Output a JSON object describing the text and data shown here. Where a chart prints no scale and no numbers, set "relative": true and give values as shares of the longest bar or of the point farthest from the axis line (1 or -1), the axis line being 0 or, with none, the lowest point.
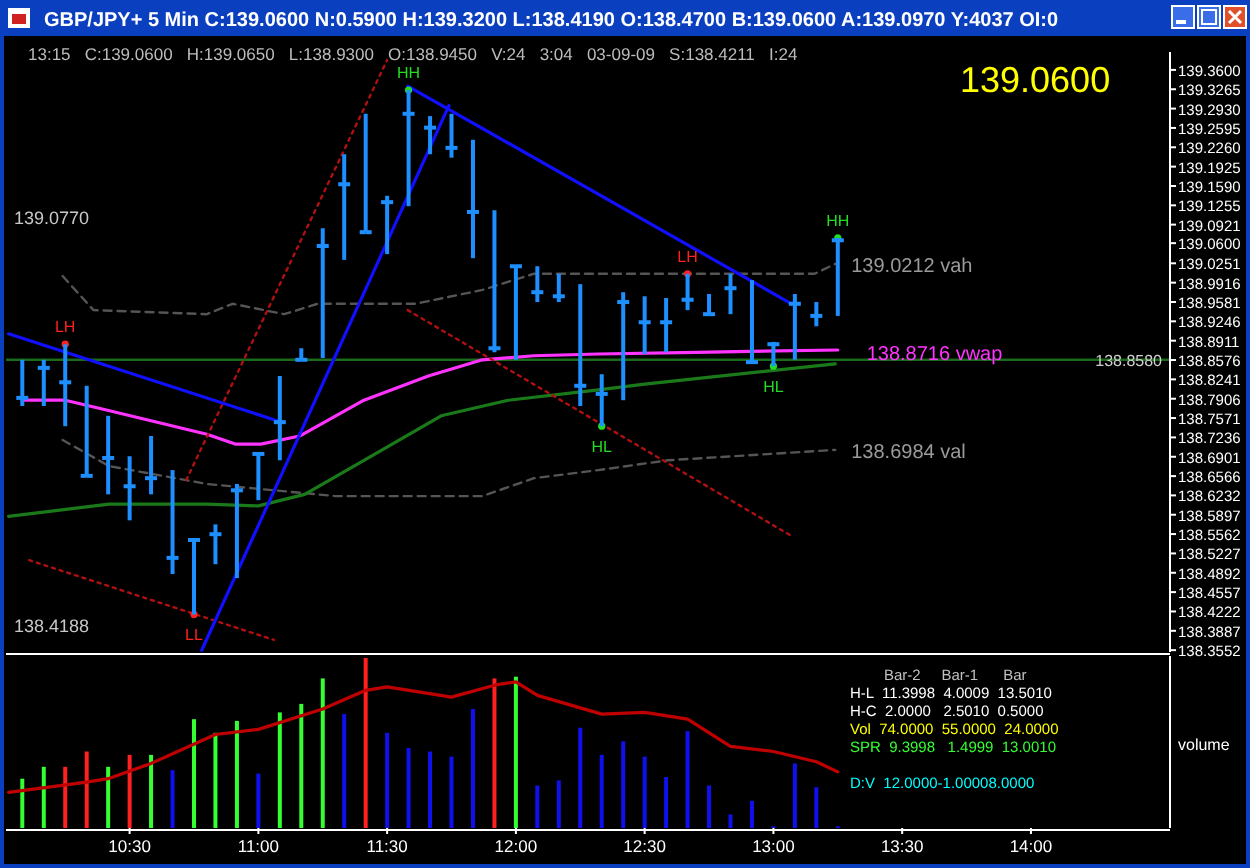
{
  "chart_data": [
    {
      "type": "candlestick",
      "title": "GBP/JPY+ 5 Min C:139.0600 N:0.5900 H:139.3200 L:138.4190 O:138.4700 B:139.0600 A:139.0970 Y:4037 OI:0",
      "subtitle": "13:15   C:139.0600   H:139.0650   L:138.9300   O:138.9450   V:24   3:04   03-09-09   S:138.4211   I:24",
      "color": "#1e8fff",
      "x": [
        10.0833,
        10.1667,
        10.25,
        10.3333,
        10.4167,
        10.5,
        10.5833,
        10.6667,
        10.75,
        10.8333,
        10.9167,
        11,
        11.0833,
        11.1667,
        11.25,
        11.3333,
        11.4167,
        11.5,
        11.5833,
        11.6667,
        11.75,
        11.8333,
        11.9167,
        12,
        12.0833,
        12.1667,
        12.25,
        12.3333,
        12.4167,
        12.5,
        12.5833,
        12.6667,
        12.75,
        12.8333,
        12.9167,
        13,
        13.0833,
        13.1667,
        13.25
      ],
      "ohlc": [
        [
          138.792,
          138.858,
          138.778,
          138.792
        ],
        [
          138.844,
          138.858,
          138.778,
          138.844
        ],
        [
          138.819,
          138.885,
          138.743,
          138.819
        ],
        [
          138.657,
          138.813,
          138.657,
          138.657
        ],
        [
          138.688,
          138.761,
          138.625,
          138.688
        ],
        [
          138.639,
          138.691,
          138.58,
          138.639
        ],
        [
          138.653,
          138.726,
          138.625,
          138.653
        ],
        [
          138.515,
          138.667,
          138.487,
          138.515
        ],
        [
          138.546,
          138.549,
          138.417,
          138.546
        ],
        [
          138.556,
          138.573,
          138.504,
          138.556
        ],
        [
          138.632,
          138.643,
          138.48,
          138.632
        ],
        [
          138.695,
          138.698,
          138.615,
          138.695
        ],
        [
          138.75,
          138.83,
          138.684,
          138.75
        ],
        [
          138.858,
          138.878,
          138.858,
          138.858
        ],
        [
          139.055,
          139.086,
          138.861,
          139.055
        ],
        [
          139.162,
          139.214,
          139.031,
          139.162
        ],
        [
          139.079,
          139.284,
          139.079,
          139.079
        ],
        [
          139.131,
          139.142,
          139.041,
          139.131
        ],
        [
          139.284,
          139.325,
          139.124,
          139.284
        ],
        [
          139.26,
          139.28,
          139.214,
          139.26
        ],
        [
          139.225,
          139.284,
          139.208,
          139.225
        ],
        [
          139.114,
          139.239,
          139.034,
          139.114
        ],
        [
          138.878,
          139.117,
          138.871,
          138.878
        ],
        [
          139.02,
          139.02,
          138.858,
          139.02
        ],
        [
          138.975,
          139.02,
          138.958,
          138.975
        ],
        [
          138.968,
          139.007,
          138.958,
          138.968
        ],
        [
          138.813,
          138.989,
          138.778,
          138.813
        ],
        [
          138.799,
          138.833,
          138.743,
          138.799
        ],
        [
          138.958,
          138.975,
          138.788,
          138.958
        ],
        [
          138.923,
          138.968,
          138.868,
          138.923
        ],
        [
          138.923,
          138.965,
          138.871,
          138.923
        ],
        [
          138.962,
          139.007,
          138.944,
          138.962
        ],
        [
          138.937,
          138.972,
          138.937,
          138.937
        ],
        [
          138.982,
          139.007,
          138.937,
          138.982
        ],
        [
          138.854,
          138.996,
          138.851,
          138.854
        ],
        [
          138.885,
          138.889,
          138.847,
          138.885
        ],
        [
          138.955,
          138.972,
          138.858,
          138.955
        ],
        [
          138.934,
          138.958,
          138.916,
          138.934
        ],
        [
          139.065,
          139.069,
          138.934,
          139.065
        ]
      ],
      "series": [
        {
          "type": "line",
          "color": "#555555",
          "line_style": "dashed",
          "x": [
            10.24,
            10.36,
            10.8,
            10.9,
            11.1,
            11.23,
            11.61,
            11.87,
            12.07,
            13.16,
            13.24
          ],
          "values": [
            139.003,
            138.944,
            138.937,
            138.955,
            138.937,
            138.955,
            138.955,
            138.979,
            139.007,
            139.007,
            139.024
          ]
        },
        {
          "type": "line",
          "color": "#555555",
          "line_style": "dashed",
          "x": [
            10.24,
            10.42,
            10.8,
            11.3,
            11.87,
            12.07,
            12.32,
            12.59,
            13.24
          ],
          "values": [
            138.719,
            138.674,
            138.643,
            138.622,
            138.622,
            138.653,
            138.667,
            138.684,
            138.702
          ]
        },
        {
          "type": "line",
          "color": "#1a7a1a",
          "line_style": "solid",
          "x": [
            10.03,
            10.42,
            10.8,
            11,
            11.18,
            11.41,
            11.71,
            11.97,
            12.32,
            12.5,
            13.24
          ],
          "values": [
            138.587,
            138.608,
            138.608,
            138.605,
            138.625,
            138.684,
            138.761,
            138.788,
            138.806,
            138.816,
            138.851
          ]
        },
        {
          "type": "line",
          "color": "#ff33ff",
          "line_style": "solid",
          "x": [
            10.0833,
            10.25,
            10.41,
            10.8,
            10.91,
            11.01,
            11.16,
            11.41,
            11.66,
            11.87,
            12.07,
            12.32,
            12.7,
            13.25
          ],
          "values": [
            138.788,
            138.788,
            138.771,
            138.729,
            138.712,
            138.712,
            138.726,
            138.788,
            138.83,
            138.858,
            138.865,
            138.868,
            138.871,
            138.875
          ]
        },
        {
          "type": "line",
          "color": "#b01010",
          "line_style": "dotted",
          "x": [
            10.72,
            11.5
          ],
          "values": [
            138.65,
            139.377
          ]
        },
        {
          "type": "line",
          "color": "#b01010",
          "line_style": "dotted",
          "x": [
            10.11,
            11.06
          ],
          "values": [
            138.511,
            138.373
          ]
        },
        {
          "type": "line",
          "color": "#b01010",
          "line_style": "dotted",
          "x": [
            11.58,
            13.07
          ],
          "values": [
            138.944,
            138.553
          ]
        },
        {
          "type": "line",
          "color": "#1010ff",
          "line_style": "solid",
          "x": [
            10.03,
            11.09
          ],
          "values": [
            138.903,
            138.75
          ]
        },
        {
          "type": "line",
          "color": "#1010ff",
          "line_style": "solid",
          "x": [
            10.78,
            11.74
          ],
          "values": [
            138.355,
            139.298
          ]
        },
        {
          "type": "line",
          "color": "#1010ff",
          "line_style": "solid",
          "x": [
            11.58,
            13.07
          ],
          "values": [
            139.332,
            138.955
          ]
        },
        {
          "type": "scatter",
          "marker": "circle",
          "x": [
            10.25,
            10.75,
            11.5833,
            12.3333,
            12.6667,
            13,
            13.25
          ],
          "values": [
            138.885,
            138.417,
            139.325,
            138.743,
            139.007,
            138.847,
            139.069
          ],
          "colors": [
            "#ff2020",
            "#ff2020",
            "#22dd22",
            "#22dd22",
            "#ff2020",
            "#22dd22",
            "#22dd22"
          ]
        }
      ],
      "ref_lines": [
        {
          "axis": "y",
          "value": 138.858,
          "label": "138.8580",
          "color": "#1a6b1a"
        }
      ],
      "annotations": [
        "139.0600",
        {
          "text": "LH",
          "x": 10.25,
          "y": 138.885
        },
        {
          "text": "LL",
          "x": 10.75,
          "y": 138.417
        },
        {
          "text": "HH",
          "x": 11.5833,
          "y": 139.325
        },
        {
          "text": "HL",
          "x": 12.3333,
          "y": 138.743
        },
        {
          "text": "LH",
          "x": 12.6667,
          "y": 139.007
        },
        {
          "text": "HL",
          "x": 13,
          "y": 138.847
        },
        {
          "text": "HH",
          "x": 13.25,
          "y": 139.069
        },
        "139.0212 vah",
        {
          "text": "138.8716 vwap",
          "x": 13.3,
          "y": 138.872
        },
        "138.6984 val",
        "139.0770",
        "138.4188"
      ],
      "xlim": [
        10.02,
        14.54
      ],
      "ylim": [
        138.352,
        139.391
      ],
      "tick_labels": "y",
      "yticks": [
        {
          "value": 139.36,
          "label": "139.3600"
        },
        {
          "value": 139.3265,
          "label": "139.3265"
        },
        {
          "value": 139.293,
          "label": "139.2930"
        },
        {
          "value": 139.2595,
          "label": "139.2595"
        },
        {
          "value": 139.226,
          "label": "139.2260"
        },
        {
          "value": 139.1925,
          "label": "139.1925"
        },
        {
          "value": 139.159,
          "label": "139.1590"
        },
        {
          "value": 139.1255,
          "label": "139.1255"
        },
        {
          "value": 139.0921,
          "label": "139.0921"
        },
        {
          "value": 139.06,
          "label": "139.0600"
        },
        {
          "value": 139.0251,
          "label": "139.0251"
        },
        {
          "value": 138.9916,
          "label": "138.9916"
        },
        {
          "value": 138.9581,
          "label": "138.9581"
        },
        {
          "value": 138.9246,
          "label": "138.9246"
        },
        {
          "value": 138.8911,
          "label": "138.8911"
        },
        {
          "value": 138.8576,
          "label": "138.8576"
        },
        {
          "value": 138.8241,
          "label": "138.8241"
        },
        {
          "value": 138.7906,
          "label": "138.7906"
        },
        {
          "value": 138.7571,
          "label": "138.7571"
        },
        {
          "value": 138.7236,
          "label": "138.7236"
        },
        {
          "value": 138.6901,
          "label": "138.6901"
        },
        {
          "value": 138.6566,
          "label": "138.6566"
        },
        {
          "value": 138.6232,
          "label": "138.6232"
        },
        {
          "value": 138.5897,
          "label": "138.5897"
        },
        {
          "value": 138.5562,
          "label": "138.5562"
        },
        {
          "value": 138.5227,
          "label": "138.5227"
        },
        {
          "value": 138.4892,
          "label": "138.4892"
        },
        {
          "value": 138.4557,
          "label": "138.4557"
        },
        {
          "value": 138.4222,
          "label": "138.4222"
        },
        {
          "value": 138.3887,
          "label": "138.3887"
        },
        {
          "value": 138.3552,
          "label": "138.3552"
        }
      ]
    },
    {
      "type": "bar",
      "relative": true,
      "ylabel": "volume",
      "tick_labels": "x",
      "xlim": [
        10.02,
        14.54
      ],
      "xticks": [
        {
          "value": 10.5,
          "label": "10:30"
        },
        {
          "value": 11,
          "label": "11:00"
        },
        {
          "value": 11.5,
          "label": "11:30"
        },
        {
          "value": 12,
          "label": "12:00"
        },
        {
          "value": 12.5,
          "label": "12:30"
        },
        {
          "value": 13,
          "label": "13:00"
        },
        {
          "value": 13.5,
          "label": "13:30"
        },
        {
          "value": 14,
          "label": "14:00"
        }
      ],
      "series": [
        {
          "x": [
            10.0833,
            10.1667,
            10.25,
            10.3333,
            10.4167,
            10.5,
            10.5833,
            10.6667,
            10.75,
            10.8333,
            10.9167,
            11,
            11.0833,
            11.1667,
            11.25,
            11.3333,
            11.4167,
            11.5,
            11.5833,
            11.6667,
            11.75,
            11.8333,
            11.9167,
            12,
            12.0833,
            12.1667,
            12.25,
            12.3333,
            12.4167,
            12.5,
            12.5833,
            12.6667,
            12.75,
            12.8333,
            12.9167,
            13,
            13.0833,
            13.1667,
            13.25
          ],
          "values": [
            0.29,
            0.36,
            0.36,
            0.45,
            0.36,
            0.43,
            0.43,
            0.34,
            0.64,
            0.56,
            0.63,
            0.32,
            0.68,
            0.73,
            0.88,
            0.67,
            1,
            0.56,
            0.47,
            0.45,
            0.42,
            0.7,
            0.88,
            0.89,
            0.25,
            0.28,
            0.59,
            0.43,
            0.51,
            0.42,
            0.3,
            0.57,
            0.25,
            0.08,
            0.16,
            0.01,
            0.38,
            0.24,
            0.01
          ],
          "colors": [
            "#33ff33",
            "#33ff33",
            "#ff2020",
            "#ff2020",
            "#33ff33",
            "#ff2020",
            "#33ff33",
            "#1010ee",
            "#33ff33",
            "#33ff33",
            "#33ff33",
            "#1010ee",
            "#33ff33",
            "#33ff33",
            "#33ff33",
            "#1010ee",
            "#ff2020",
            "#1010ee",
            "#1010ee",
            "#1010ee",
            "#1010ee",
            "#1010ee",
            "#ff2020",
            "#33ff33",
            "#1010ee",
            "#1010ee",
            "#1010ee",
            "#1010ee",
            "#1010ee",
            "#1010ee",
            "#1010ee",
            "#1010ee",
            "#1010ee",
            "#1010ee",
            "#1010ee",
            "#1010ee",
            "#1010ee",
            "#1010ee",
            "#1010ee"
          ]
        },
        {
          "type": "line",
          "color": "#c00000",
          "x": [
            10.03,
            10.3333,
            10.4167,
            10.5833,
            10.8333,
            11,
            11.25,
            11.4167,
            11.5,
            11.75,
            11.9167,
            12,
            12.0833,
            12.3333,
            12.5,
            12.6667,
            12.8333,
            13,
            13.1667,
            13.25
          ],
          "values": [
            0.21,
            0.27,
            0.29,
            0.38,
            0.55,
            0.58,
            0.7,
            0.81,
            0.83,
            0.77,
            0.84,
            0.86,
            0.78,
            0.67,
            0.68,
            0.64,
            0.48,
            0.45,
            0.39,
            0.33
          ]
        }
      ],
      "annotations": [
        "Bar-2     Bar-1      Bar",
        "H-L  11.3998  4.0009  13.5010",
        "H-C  2.0000   2.5010  0.5000",
        "Vol  74.0000  55.0000  24.0000",
        "SPR  9.3998   1.4999  13.0010",
        "D:V  12.0000-1.00008.0000"
      ]
    }
  ]
}
